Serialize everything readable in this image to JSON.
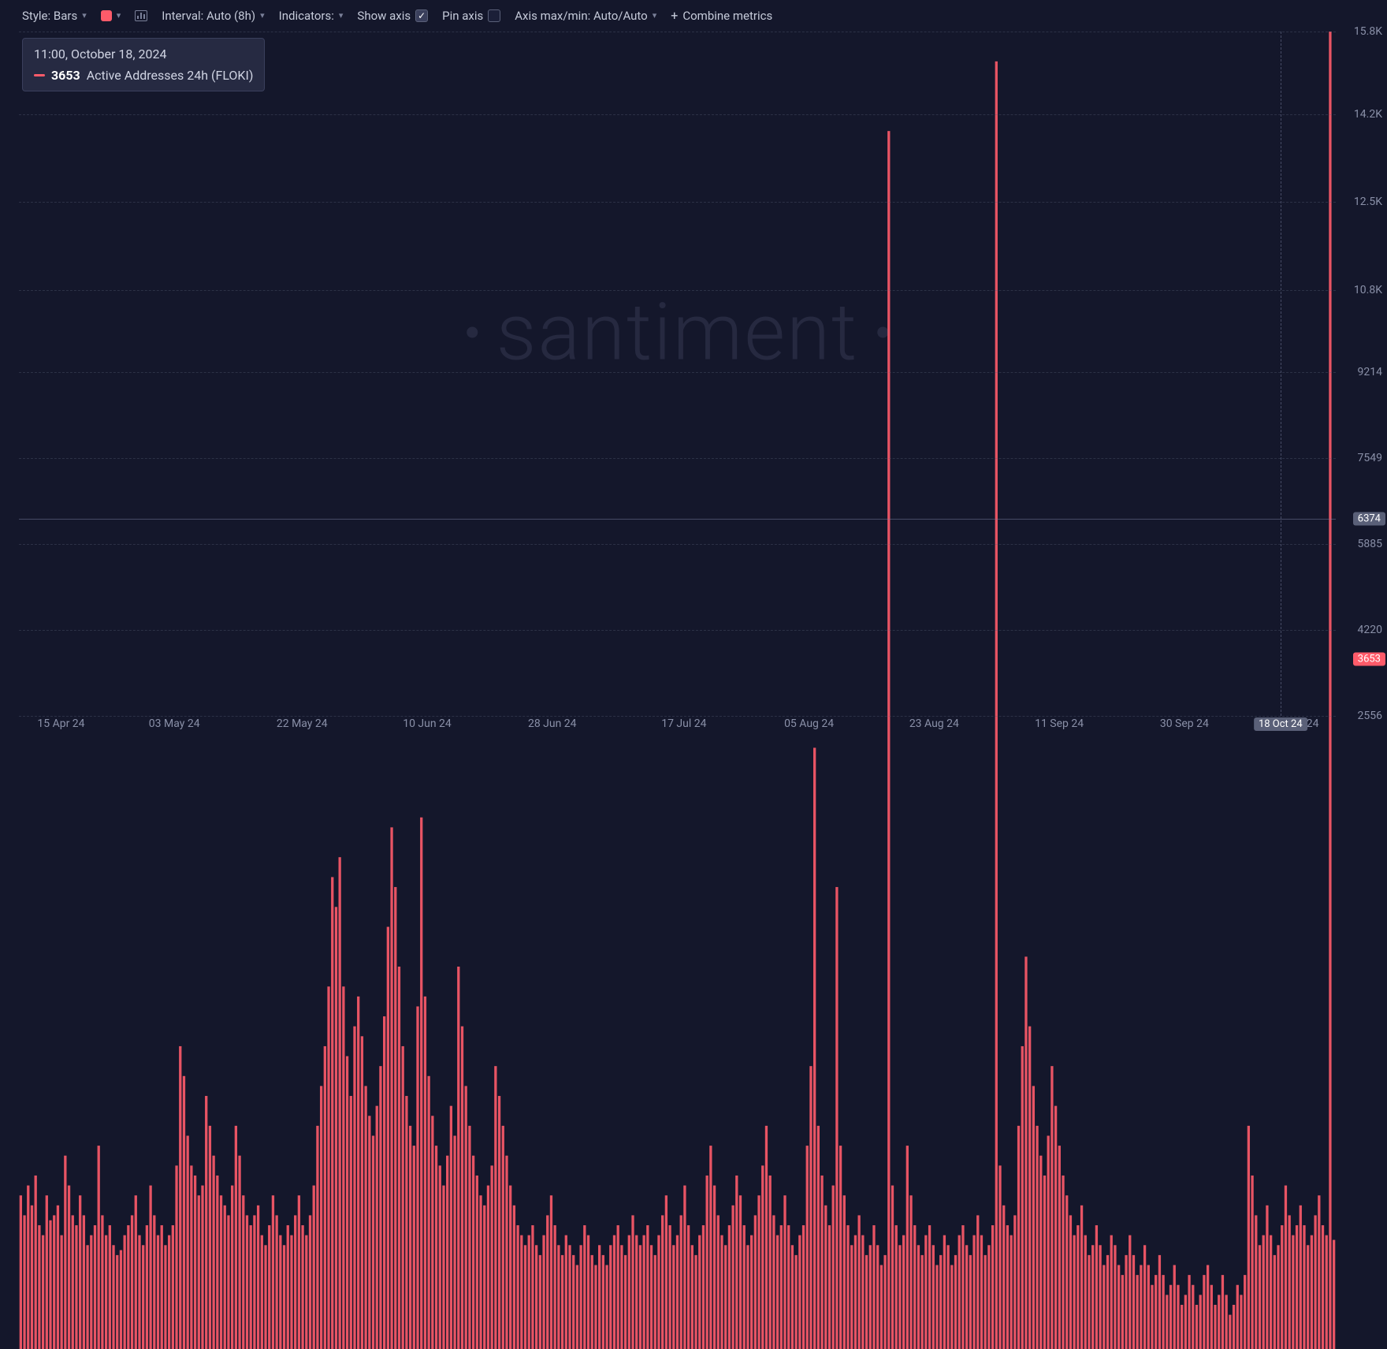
{
  "toolbar": {
    "style_label": "Style: Bars",
    "series_color": "#ff5b6a",
    "interval_label": "Interval: Auto (8h)",
    "indicators_label": "Indicators:",
    "show_axis_label": "Show axis",
    "show_axis_checked": true,
    "pin_axis_label": "Pin axis",
    "pin_axis_checked": false,
    "axis_minmax_label": "Axis max/min: Auto/Auto",
    "combine_label": "Combine metrics"
  },
  "tooltip": {
    "timestamp": "11:00, October 18, 2024",
    "value": "3653",
    "metric": "Active Addresses 24h (FLOKI)",
    "color": "#ff5b6a"
  },
  "watermark": "santiment",
  "chart": {
    "type": "bar",
    "background_color": "#14172b",
    "grid_color": "rgba(90,96,120,0.35)",
    "bar_color": "#ff5b6a",
    "bar_opacity": 0.9,
    "y_min": 2556,
    "y_max": 15800,
    "y_ticks": [
      {
        "v": 15800,
        "label": "15.8K"
      },
      {
        "v": 14200,
        "label": "14.2K"
      },
      {
        "v": 12500,
        "label": "12.5K"
      },
      {
        "v": 10800,
        "label": "10.8K"
      },
      {
        "v": 9214,
        "label": "9214"
      },
      {
        "v": 7549,
        "label": "7549"
      },
      {
        "v": 5885,
        "label": "5885"
      },
      {
        "v": 4220,
        "label": "4220"
      },
      {
        "v": 2556,
        "label": "2556"
      }
    ],
    "y_cursor": {
      "v": 6374,
      "label": "6374"
    },
    "y_current": {
      "v": 3653,
      "label": "3653"
    },
    "x_ticks": [
      {
        "p": 0.032,
        "label": "15 Apr 24"
      },
      {
        "p": 0.118,
        "label": "03 May 24"
      },
      {
        "p": 0.215,
        "label": "22 May 24"
      },
      {
        "p": 0.31,
        "label": "10 Jun 24"
      },
      {
        "p": 0.405,
        "label": "28 Jun 24"
      },
      {
        "p": 0.505,
        "label": "17 Jul 24"
      },
      {
        "p": 0.6,
        "label": "05 Aug 24"
      },
      {
        "p": 0.695,
        "label": "23 Aug 24"
      },
      {
        "p": 0.79,
        "label": "11 Sep 24"
      },
      {
        "p": 0.885,
        "label": "30 Sep 24"
      },
      {
        "p": 0.98,
        "label": "t 24"
      }
    ],
    "x_cursor": {
      "p": 0.958,
      "label": "18 Oct 24"
    },
    "values": [
      4100,
      3900,
      4200,
      4000,
      4300,
      3800,
      3700,
      4100,
      3850,
      3900,
      4000,
      3700,
      4500,
      4200,
      3900,
      3800,
      4100,
      3900,
      3600,
      3700,
      3800,
      4600,
      3900,
      3700,
      3800,
      3600,
      3500,
      3550,
      3700,
      3800,
      3900,
      4100,
      3700,
      3600,
      3800,
      4200,
      3900,
      3700,
      3800,
      3600,
      3700,
      3800,
      4400,
      5600,
      5300,
      4700,
      4400,
      4300,
      4100,
      4200,
      5100,
      4800,
      4500,
      4300,
      4100,
      4000,
      3900,
      4200,
      4800,
      4500,
      4100,
      3900,
      3800,
      3900,
      4000,
      3700,
      3600,
      3800,
      4100,
      3900,
      3700,
      3600,
      3800,
      3700,
      3900,
      4100,
      3800,
      3700,
      3900,
      4200,
      4800,
      5200,
      5600,
      6200,
      7300,
      7000,
      7500,
      6200,
      5500,
      5100,
      5800,
      6100,
      5700,
      5200,
      4900,
      4700,
      5000,
      5400,
      5900,
      6800,
      7800,
      7200,
      6400,
      5600,
      5100,
      4800,
      4600,
      6000,
      7900,
      6100,
      5300,
      4900,
      4600,
      4400,
      4200,
      4500,
      5000,
      4700,
      6400,
      5800,
      5200,
      4800,
      4500,
      4300,
      4100,
      4000,
      4200,
      4400,
      5400,
      5100,
      4800,
      4500,
      4200,
      4000,
      3800,
      3700,
      3600,
      3700,
      3800,
      3600,
      3500,
      3700,
      3900,
      4100,
      3800,
      3600,
      3500,
      3700,
      3600,
      3500,
      3400,
      3600,
      3800,
      3700,
      3500,
      3400,
      3600,
      3500,
      3400,
      3600,
      3700,
      3800,
      3600,
      3500,
      3700,
      3900,
      3700,
      3600,
      3700,
      3800,
      3600,
      3500,
      3700,
      3900,
      4100,
      3800,
      3600,
      3700,
      3900,
      4200,
      3800,
      3600,
      3500,
      3700,
      3800,
      4300,
      4600,
      4200,
      3900,
      3700,
      3600,
      3800,
      4000,
      4300,
      4100,
      3800,
      3600,
      3700,
      3900,
      4100,
      4400,
      4800,
      4300,
      3900,
      3700,
      3800,
      4100,
      3800,
      3600,
      3500,
      3700,
      3800,
      4600,
      5400,
      8600,
      4800,
      4300,
      4000,
      3800,
      4200,
      7200,
      4600,
      4100,
      3800,
      3600,
      3700,
      3900,
      3700,
      3500,
      3600,
      3800,
      3600,
      3400,
      3500,
      14800,
      4200,
      3800,
      3600,
      3700,
      4600,
      4100,
      3800,
      3600,
      3500,
      3700,
      3800,
      3600,
      3400,
      3500,
      3700,
      3600,
      3400,
      3500,
      3700,
      3800,
      3600,
      3500,
      3700,
      3900,
      3700,
      3500,
      3600,
      3800,
      15500,
      4400,
      4000,
      3800,
      3700,
      3900,
      4800,
      5600,
      6500,
      5800,
      5200,
      4800,
      4500,
      4300,
      4700,
      5400,
      5000,
      4600,
      4300,
      4100,
      3900,
      3700,
      3800,
      4000,
      3700,
      3500,
      3600,
      3800,
      3600,
      3400,
      3500,
      3700,
      3600,
      3400,
      3300,
      3500,
      3700,
      3500,
      3300,
      3400,
      3600,
      3400,
      3200,
      3300,
      3500,
      3300,
      3100,
      3200,
      3400,
      3200,
      3000,
      3100,
      3300,
      3200,
      3000,
      3100,
      3300,
      3400,
      3200,
      3000,
      3100,
      3300,
      3100,
      2900,
      3000,
      3200,
      3100,
      3300,
      4800,
      4300,
      3900,
      3600,
      3700,
      4000,
      3700,
      3500,
      3600,
      3800,
      4200,
      3900,
      3700,
      3800,
      4000,
      3800,
      3600,
      3700,
      3900,
      4100,
      3800,
      3700,
      15800,
      3653
    ]
  }
}
